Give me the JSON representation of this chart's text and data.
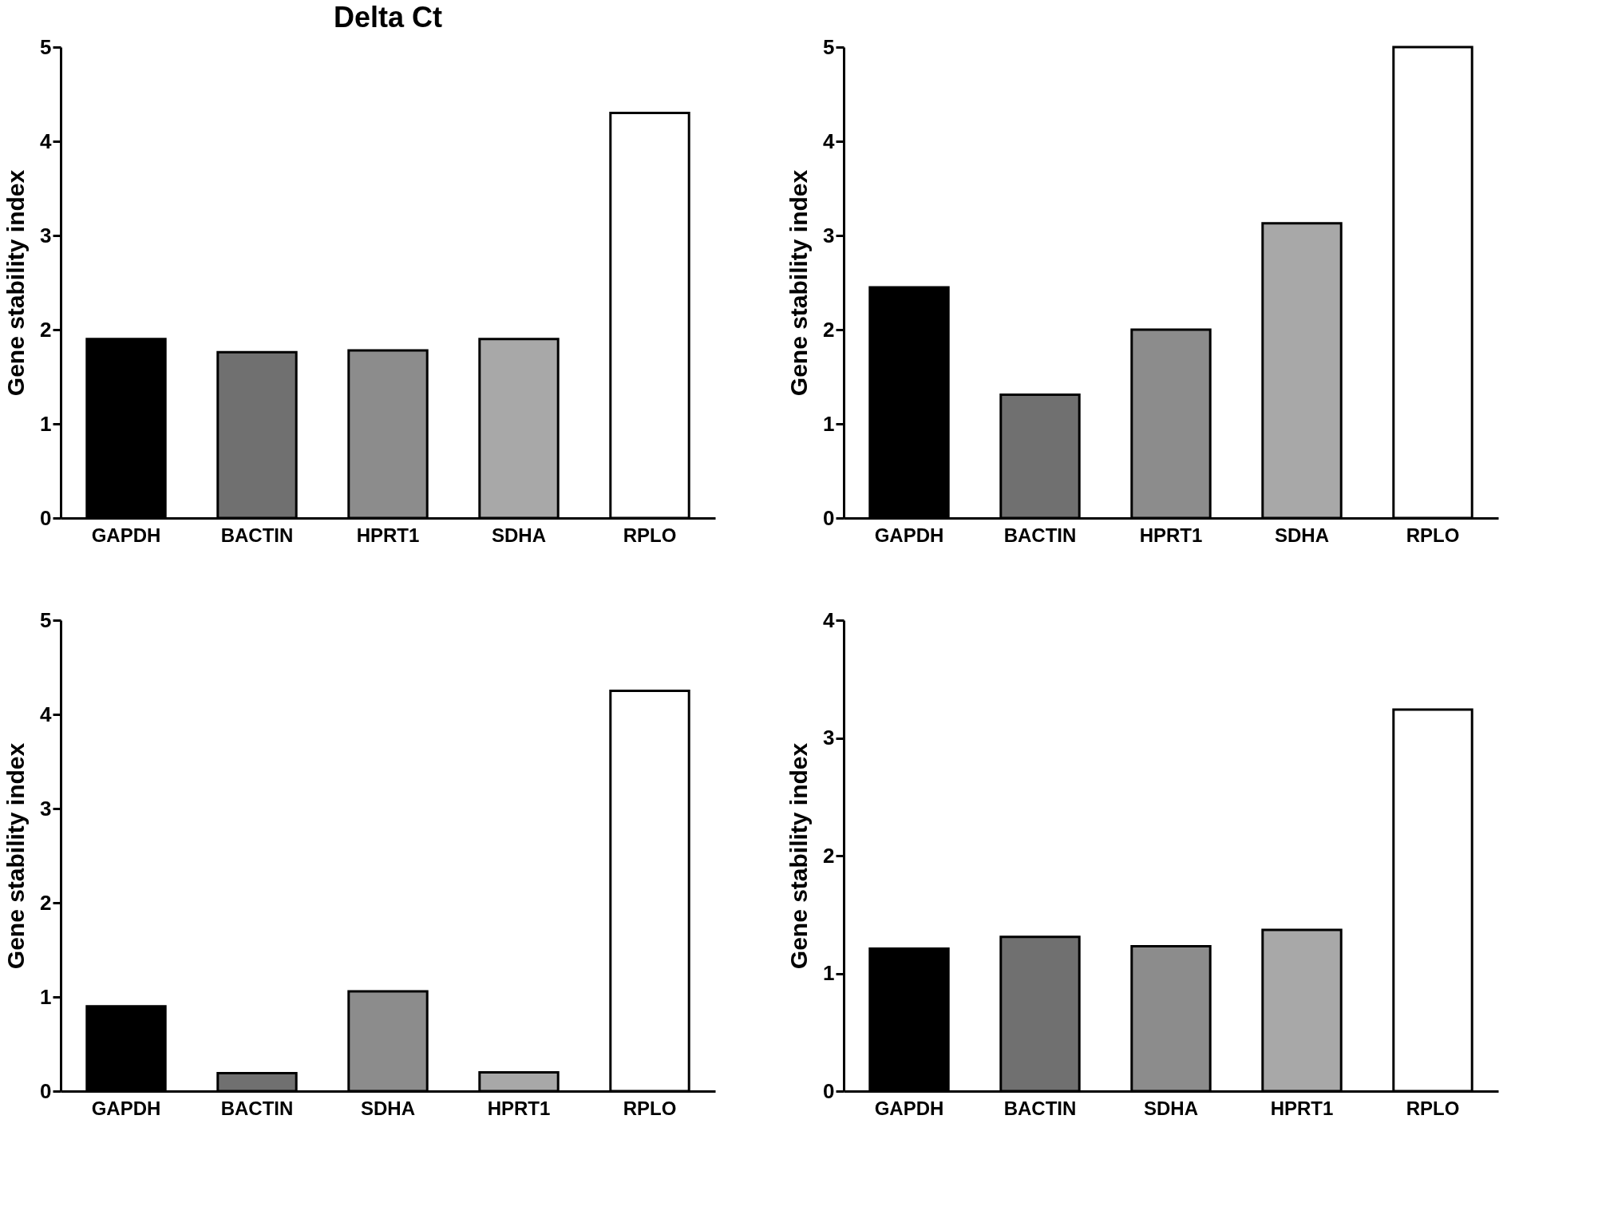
{
  "chart_data": [
    {
      "type": "bar",
      "title": "Delta Ct",
      "ylabel": "Gene stability index",
      "categories": [
        "GAPDH",
        "BACTIN",
        "HPRT1",
        "SDHA",
        "RPLO"
      ],
      "values": [
        1.9,
        1.76,
        1.78,
        1.9,
        4.3
      ],
      "colors": [
        "#000000",
        "#707070",
        "#8c8c8c",
        "#a8a8a8",
        "#ffffff"
      ],
      "ylim": [
        0,
        5
      ],
      "yticks": [
        0,
        1,
        2,
        3,
        4,
        5
      ],
      "grid": false
    },
    {
      "type": "bar",
      "ylabel": "Gene stability index",
      "categories": [
        "GAPDH",
        "BACTIN",
        "HPRT1",
        "SDHA",
        "RPLO"
      ],
      "values": [
        2.45,
        1.31,
        2.0,
        3.13,
        5.0
      ],
      "colors": [
        "#000000",
        "#707070",
        "#8c8c8c",
        "#a8a8a8",
        "#ffffff"
      ],
      "ylim": [
        0,
        5
      ],
      "yticks": [
        0,
        1,
        2,
        3,
        4,
        5
      ],
      "grid": false
    },
    {
      "type": "bar",
      "ylabel": "Gene stability index",
      "categories": [
        "GAPDH",
        "BACTIN",
        "SDHA",
        "HPRT1",
        "RPLO"
      ],
      "values": [
        0.9,
        0.19,
        1.06,
        0.2,
        4.25
      ],
      "colors": [
        "#000000",
        "#707070",
        "#8c8c8c",
        "#a8a8a8",
        "#ffffff"
      ],
      "ylim": [
        0,
        5
      ],
      "yticks": [
        0,
        1,
        2,
        3,
        4,
        5
      ],
      "grid": false
    },
    {
      "type": "bar",
      "ylabel": "Gene stability index",
      "categories": [
        "GAPDH",
        "BACTIN",
        "SDHA",
        "HPRT1",
        "RPLO"
      ],
      "values": [
        1.21,
        1.31,
        1.23,
        1.37,
        3.24
      ],
      "colors": [
        "#000000",
        "#707070",
        "#8c8c8c",
        "#a8a8a8",
        "#ffffff"
      ],
      "ylim": [
        0,
        4
      ],
      "yticks": [
        0,
        1,
        2,
        3,
        4
      ],
      "grid": false
    }
  ]
}
